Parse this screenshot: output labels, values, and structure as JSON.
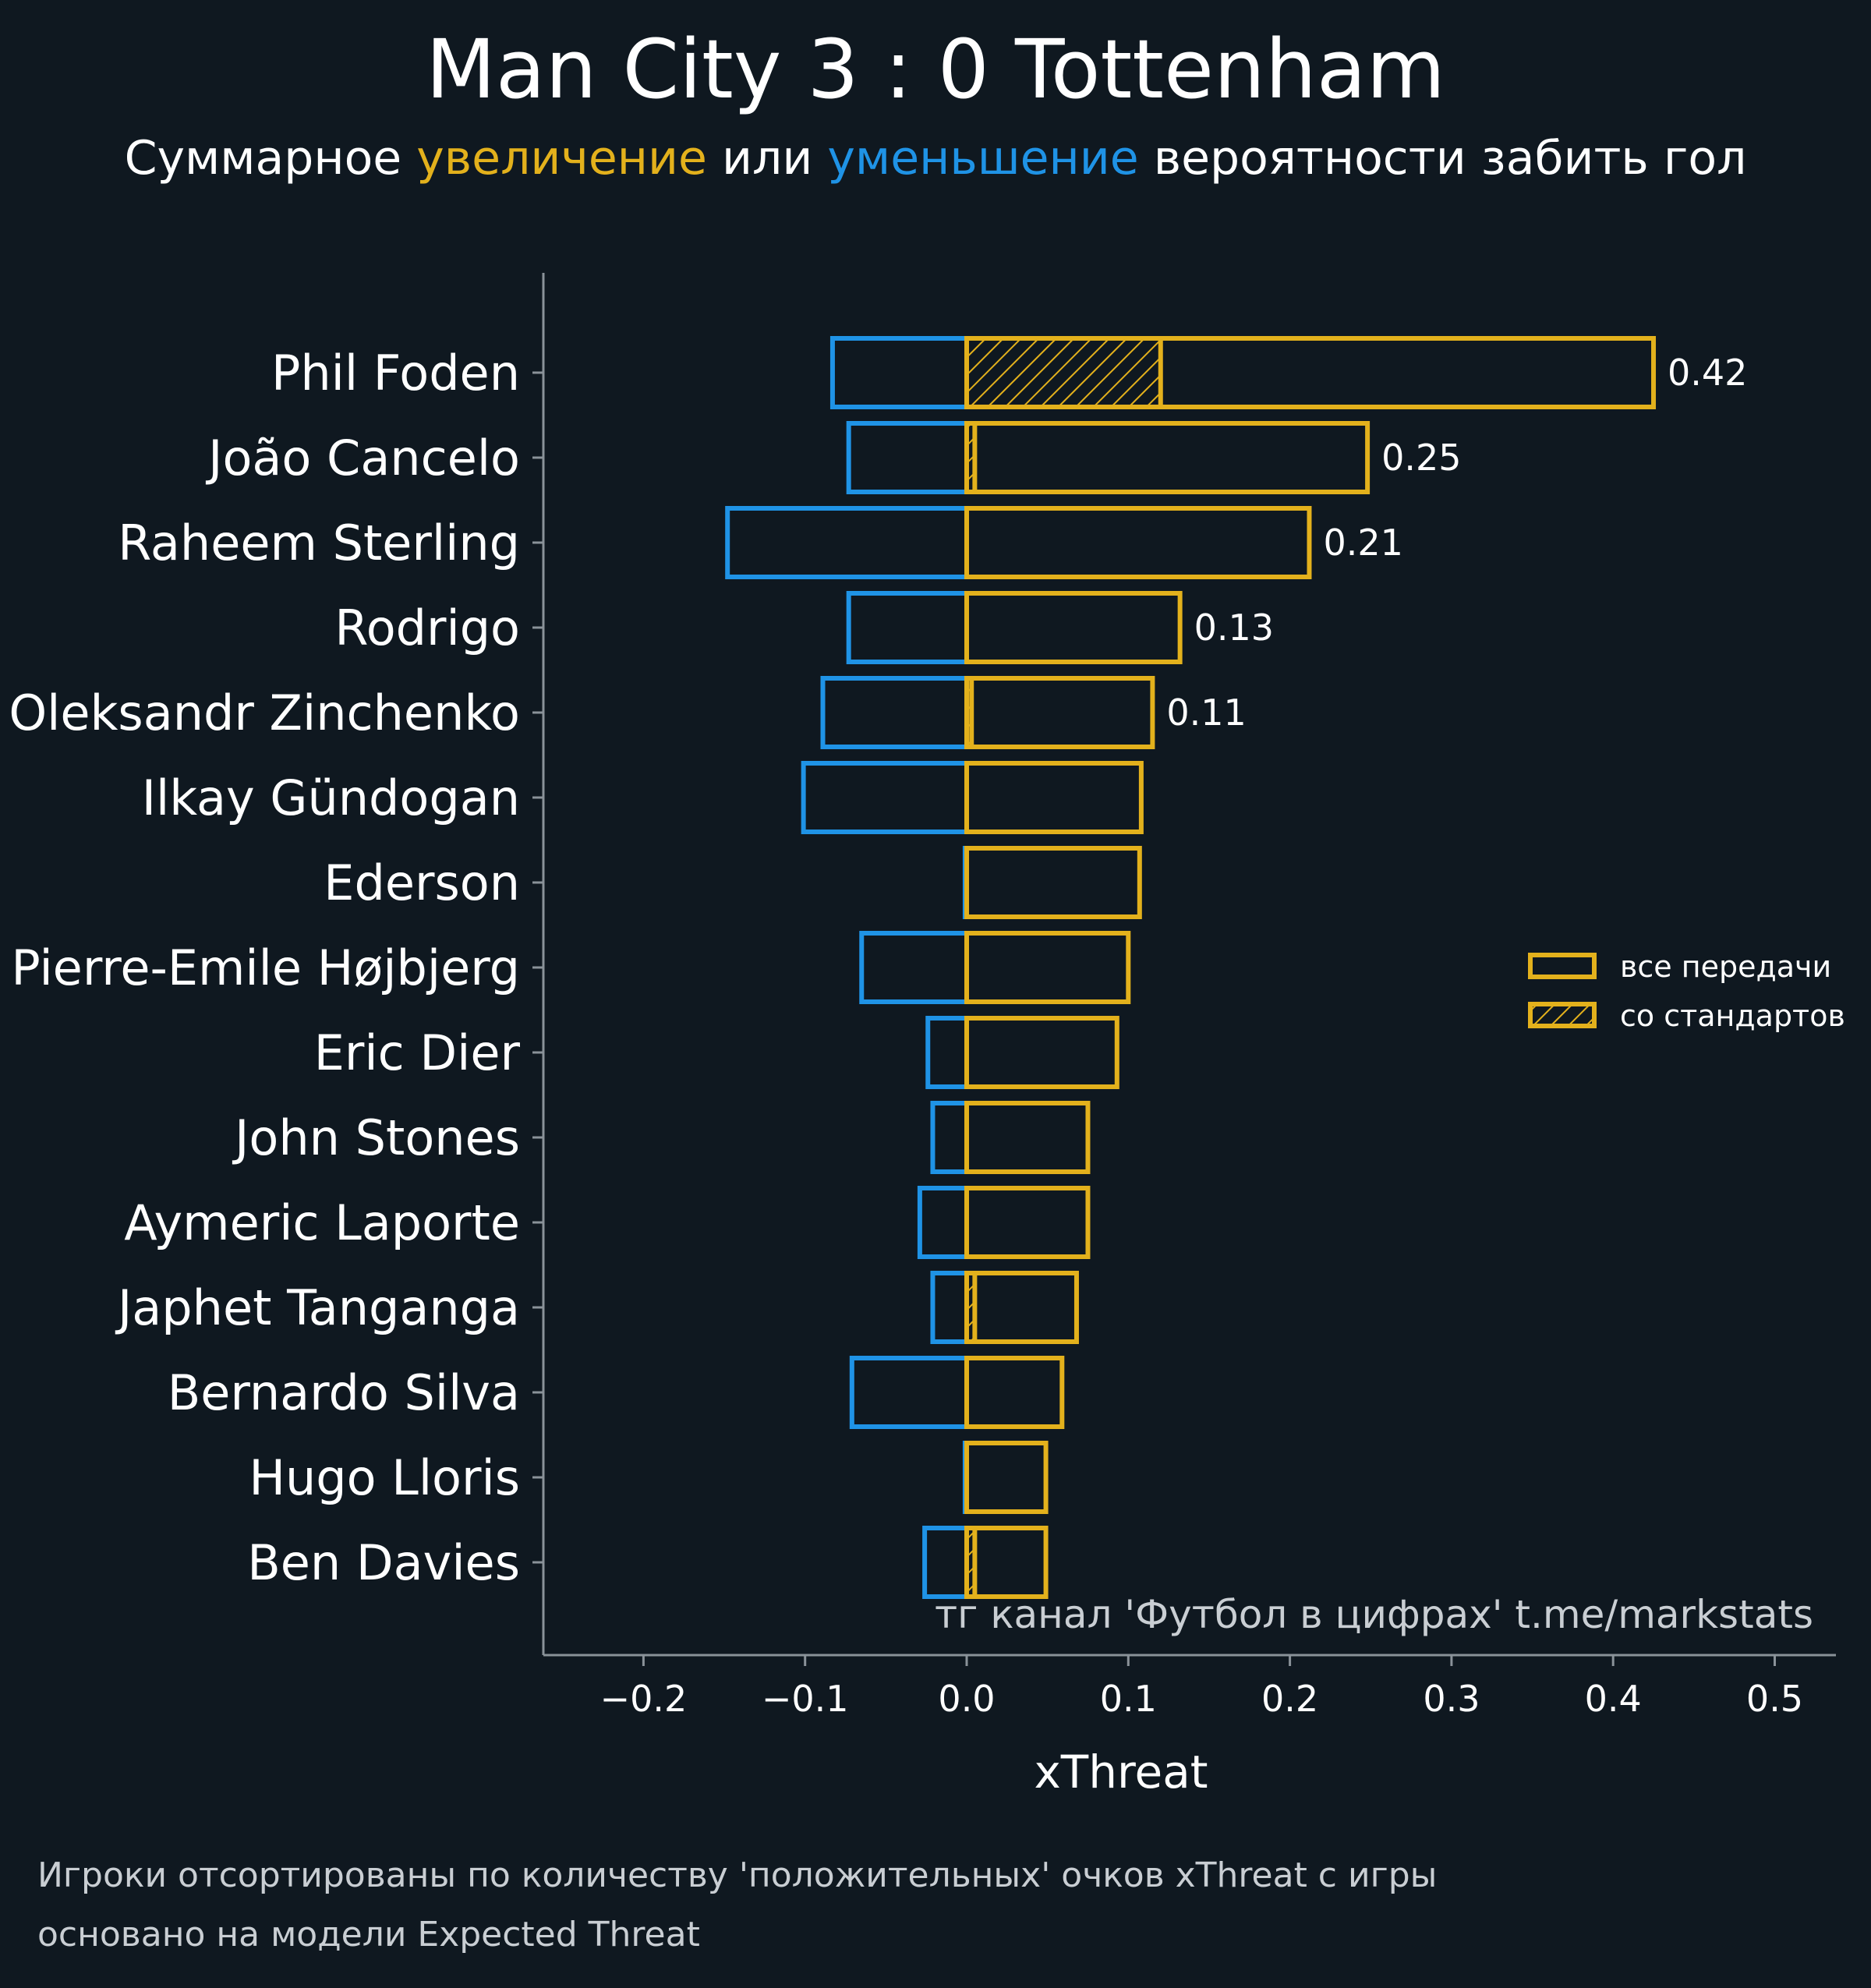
{
  "title": "Man City 3 : 0 Tottenham",
  "subtitle": {
    "part1": "Суммарное ",
    "increase": "увеличение",
    "part2": " или ",
    "decrease": "уменьшение",
    "part3": " вероятности забить гол"
  },
  "colors": {
    "background": "#0f1820",
    "increase": "#e3b11c",
    "decrease": "#1f93e6",
    "text": "#ffffff",
    "axis": "#8a9299"
  },
  "watermark": "тг канал 'Футбол в цифрах'  t.me/markstats",
  "footnote": {
    "line1": "Игроки отсортированы по количеству 'положительных' очков xThreat с игры",
    "line2": "основано на модели Expected Threat"
  },
  "chart_data": {
    "type": "bar",
    "orientation": "horizontal",
    "title": "Man City 3 : 0 Tottenham",
    "xlabel": "xThreat",
    "ylabel": "",
    "xlim": [
      -0.26,
      0.54
    ],
    "xticks": [
      -0.2,
      -0.1,
      0.0,
      0.1,
      0.2,
      0.3,
      0.4,
      0.5
    ],
    "xtick_labels": [
      "−0.2",
      "−0.1",
      "0.0",
      "0.1",
      "0.2",
      "0.3",
      "0.4",
      "0.5"
    ],
    "categories": [
      "Phil Foden",
      "João Cancelo",
      "Raheem Sterling",
      "Rodrigo",
      "Oleksandr Zinchenko",
      "Ilkay Gündogan",
      "Ederson",
      "Pierre-Emile Højbjerg",
      "Eric Dier",
      "John Stones",
      "Aymeric Laporte",
      "Japhet Tanganga",
      "Bernardo Silva",
      "Hugo Lloris",
      "Ben Davies"
    ],
    "series": [
      {
        "name": "все передачи (увеличение)",
        "values": [
          0.425,
          0.248,
          0.212,
          0.132,
          0.115,
          0.108,
          0.107,
          0.1,
          0.093,
          0.075,
          0.075,
          0.068,
          0.059,
          0.049,
          0.049
        ]
      },
      {
        "name": "все передачи (уменьшение)",
        "values": [
          -0.083,
          -0.073,
          -0.148,
          -0.073,
          -0.089,
          -0.101,
          -0.001,
          -0.065,
          -0.024,
          -0.021,
          -0.029,
          -0.021,
          -0.071,
          -0.001,
          -0.026
        ]
      },
      {
        "name": "со стандартов",
        "values": [
          0.12,
          0.005,
          0.0,
          0.0,
          0.003,
          0.0,
          0.0,
          0.0,
          0.0,
          0.0,
          0.0,
          0.005,
          0.0,
          0.0,
          0.005
        ]
      }
    ],
    "data_labels": [
      "0.42",
      "0.25",
      "0.21",
      "0.13",
      "0.11",
      "",
      "",
      "",
      "",
      "",
      "",
      "",
      "",
      "",
      ""
    ],
    "legend": {
      "position": "right",
      "entries": [
        "все передачи",
        "со стандартов"
      ]
    }
  }
}
